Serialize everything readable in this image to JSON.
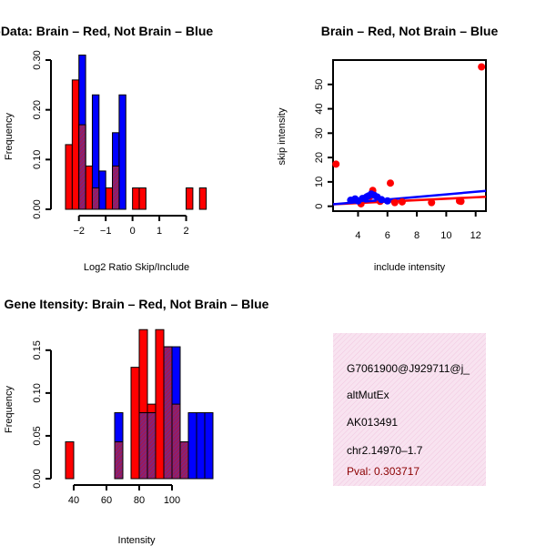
{
  "colors": {
    "red": "#ff0000",
    "blue": "#0000ff",
    "overlap": "#8b2a8b",
    "info_bg": "#f7dcec",
    "pval": "#8b0000"
  },
  "chart_data": [
    {
      "id": "ratio_hist",
      "type": "bar",
      "title": "RatioData: Brain – Red, Not Brain – Blue",
      "xlabel": "Log2 Ratio Skip/Include",
      "ylabel": "Frequency",
      "xlim": [
        -2.5,
        3
      ],
      "ylim": [
        0,
        0.3
      ],
      "xticks": [
        -2,
        -1,
        0,
        1,
        2
      ],
      "yticks": [
        0.0,
        0.1,
        0.2,
        0.3
      ],
      "ytick_labels": [
        "0.00",
        "0.10",
        "0.20",
        "0.30"
      ],
      "bin_width": 0.25,
      "series": [
        {
          "name": "Brain",
          "color": "red",
          "bins": [
            {
              "x0": -2.5,
              "v": 0.13
            },
            {
              "x0": -2.25,
              "v": 0.26
            },
            {
              "x0": -2.0,
              "v": 0.17
            },
            {
              "x0": -1.75,
              "v": 0.087
            },
            {
              "x0": -1.5,
              "v": 0.043
            },
            {
              "x0": -1.25,
              "v": 0.0
            },
            {
              "x0": -1.0,
              "v": 0.043
            },
            {
              "x0": -0.75,
              "v": 0.087
            },
            {
              "x0": -0.25,
              "v": 0.0
            },
            {
              "x0": 0.0,
              "v": 0.043
            },
            {
              "x0": 0.25,
              "v": 0.043
            },
            {
              "x0": 2.0,
              "v": 0.043
            },
            {
              "x0": 2.5,
              "v": 0.043
            }
          ]
        },
        {
          "name": "Not Brain",
          "color": "blue",
          "bins": [
            {
              "x0": -2.0,
              "v": 0.31
            },
            {
              "x0": -1.5,
              "v": 0.23
            },
            {
              "x0": -1.25,
              "v": 0.077
            },
            {
              "x0": -0.75,
              "v": 0.154
            },
            {
              "x0": -0.5,
              "v": 0.23
            }
          ]
        }
      ]
    },
    {
      "id": "scatter",
      "type": "scatter",
      "title": "Brain – Red, Not Brain – Blue",
      "xlabel": "include intensity",
      "ylabel": "skip intensity",
      "xlim": [
        2.3,
        12.7
      ],
      "ylim": [
        -2,
        60
      ],
      "xticks": [
        4,
        6,
        8,
        10,
        12
      ],
      "yticks": [
        0,
        10,
        20,
        30,
        40,
        50
      ],
      "series": [
        {
          "name": "Brain",
          "color": "red",
          "points": [
            [
              2.5,
              17.3
            ],
            [
              6.2,
              9.5
            ],
            [
              5.0,
              6.5
            ],
            [
              4.8,
              4.0
            ],
            [
              5.5,
              2.0
            ],
            [
              6.5,
              1.5
            ],
            [
              7.0,
              1.8
            ],
            [
              9.0,
              1.5
            ],
            [
              10.9,
              2.2
            ],
            [
              11.0,
              2.0
            ],
            [
              12.4,
              57.2
            ],
            [
              4.2,
              1.0
            ]
          ],
          "fit": [
            [
              2.3,
              0.8
            ],
            [
              12.7,
              3.9
            ]
          ]
        },
        {
          "name": "Not Brain",
          "color": "blue",
          "points": [
            [
              3.5,
              2.5
            ],
            [
              3.8,
              3.0
            ],
            [
              4.0,
              2.2
            ],
            [
              4.3,
              3.2
            ],
            [
              4.5,
              3.4
            ],
            [
              4.7,
              4.2
            ],
            [
              4.9,
              5.0
            ],
            [
              5.1,
              4.5
            ],
            [
              5.3,
              3.8
            ],
            [
              5.6,
              2.7
            ],
            [
              6.0,
              2.2
            ],
            [
              4.6,
              3.9
            ]
          ],
          "fit": [
            [
              2.3,
              0.8
            ],
            [
              12.7,
              6.3
            ]
          ]
        }
      ]
    },
    {
      "id": "intensity_hist",
      "type": "bar",
      "title": "Gene Itensity: Brain – Red, Not Brain – Blue",
      "xlabel": "Intensity",
      "ylabel": "Frequency",
      "xlim": [
        35,
        125
      ],
      "ylim": [
        0,
        0.17
      ],
      "xticks": [
        40,
        60,
        80,
        100
      ],
      "yticks": [
        0.0,
        0.05,
        0.1,
        0.15
      ],
      "ytick_labels": [
        "0.00",
        "0.05",
        "0.10",
        "0.15"
      ],
      "bin_width": 5,
      "series": [
        {
          "name": "Brain",
          "color": "red",
          "bins": [
            {
              "x0": 35,
              "v": 0.043
            },
            {
              "x0": 65,
              "v": 0.043
            },
            {
              "x0": 75,
              "v": 0.13
            },
            {
              "x0": 80,
              "v": 0.174
            },
            {
              "x0": 85,
              "v": 0.087
            },
            {
              "x0": 90,
              "v": 0.174
            },
            {
              "x0": 95,
              "v": 0.154
            },
            {
              "x0": 100,
              "v": 0.087
            },
            {
              "x0": 105,
              "v": 0.043
            }
          ]
        },
        {
          "name": "Not Brain",
          "color": "blue",
          "bins": [
            {
              "x0": 65,
              "v": 0.077
            },
            {
              "x0": 80,
              "v": 0.077
            },
            {
              "x0": 85,
              "v": 0.077
            },
            {
              "x0": 95,
              "v": 0.154
            },
            {
              "x0": 100,
              "v": 0.154
            },
            {
              "x0": 105,
              "v": 0.043
            },
            {
              "x0": 110,
              "v": 0.077
            },
            {
              "x0": 115,
              "v": 0.077
            },
            {
              "x0": 120,
              "v": 0.077
            }
          ]
        }
      ]
    }
  ],
  "info": {
    "id": "G7061900@J929711@j_",
    "type": "altMutEx",
    "accession": "AK013491",
    "location": "chr2.14970–1.7",
    "pval": "Pval: 0.303717"
  }
}
